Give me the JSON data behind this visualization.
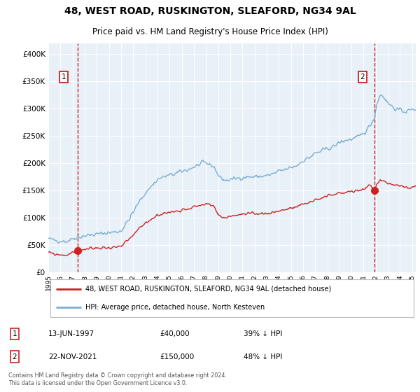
{
  "title": "48, WEST ROAD, RUSKINGTON, SLEAFORD, NG34 9AL",
  "subtitle": "Price paid vs. HM Land Registry's House Price Index (HPI)",
  "legend_line1": "48, WEST ROAD, RUSKINGTON, SLEAFORD, NG34 9AL (detached house)",
  "legend_line2": "HPI: Average price, detached house, North Kesteven",
  "annotation1": {
    "label": "1",
    "date_x": 1997.45,
    "price_y": 40000,
    "date_str": "13-JUN-1997",
    "price_str": "£40,000",
    "pct_str": "39% ↓ HPI"
  },
  "annotation2": {
    "label": "2",
    "date_x": 2021.9,
    "price_y": 150000,
    "date_str": "22-NOV-2021",
    "price_str": "£150,000",
    "pct_str": "48% ↓ HPI"
  },
  "hpi_color": "#7aaed4",
  "price_color": "#cc2222",
  "vline_color": "#cc2222",
  "bg_color": "#ffffff",
  "plot_bg": "#e8f0f8",
  "grid_color": "#ffffff",
  "ylim": [
    0,
    420000
  ],
  "xlim_start": 1995.0,
  "xlim_end": 2025.3,
  "footer": "Contains HM Land Registry data © Crown copyright and database right 2024.\nThis data is licensed under the Open Government Licence v3.0.",
  "hpi_key_years": [
    1995.0,
    1995.3,
    1995.6,
    1995.9,
    1996.2,
    1996.5,
    1996.8,
    1997.0,
    1997.3,
    1997.6,
    1997.9,
    1998.3,
    1998.7,
    1999.0,
    1999.5,
    2000.0,
    2000.5,
    2001.0,
    2001.5,
    2002.0,
    2002.5,
    2003.0,
    2003.5,
    2004.0,
    2004.5,
    2005.0,
    2005.5,
    2006.0,
    2006.5,
    2007.0,
    2007.3,
    2007.7,
    2008.0,
    2008.3,
    2008.7,
    2009.0,
    2009.3,
    2009.6,
    2010.0,
    2010.5,
    2011.0,
    2011.5,
    2012.0,
    2012.5,
    2013.0,
    2013.5,
    2014.0,
    2014.5,
    2015.0,
    2015.5,
    2016.0,
    2016.5,
    2017.0,
    2017.5,
    2018.0,
    2018.5,
    2019.0,
    2019.5,
    2020.0,
    2020.3,
    2020.6,
    2021.0,
    2021.3,
    2021.6,
    2021.9,
    2022.1,
    2022.3,
    2022.5,
    2022.8,
    2023.0,
    2023.3,
    2023.6,
    2024.0,
    2024.5,
    2025.0,
    2025.3
  ],
  "hpi_key_vals": [
    62000,
    60000,
    59000,
    58000,
    57500,
    57000,
    60000,
    62000,
    64000,
    65000,
    67000,
    68000,
    69000,
    70000,
    71500,
    73000,
    74000,
    76000,
    92000,
    110000,
    130000,
    145000,
    158000,
    170000,
    175000,
    178000,
    181000,
    185000,
    188000,
    193000,
    196000,
    200000,
    200000,
    198000,
    193000,
    178000,
    172000,
    168000,
    170000,
    172000,
    174000,
    175000,
    175000,
    176000,
    177000,
    180000,
    185000,
    188000,
    192000,
    196000,
    205000,
    210000,
    218000,
    222000,
    227000,
    230000,
    238000,
    242000,
    244000,
    246000,
    248000,
    255000,
    262000,
    272000,
    285000,
    310000,
    323000,
    325000,
    318000,
    310000,
    305000,
    300000,
    297000,
    295000,
    298000,
    300000
  ],
  "red_key_years": [
    1995.0,
    1995.3,
    1995.6,
    1995.9,
    1996.2,
    1996.5,
    1996.8,
    1997.0,
    1997.3,
    1997.45,
    1997.6,
    1997.9,
    1998.3,
    1998.7,
    1999.0,
    1999.5,
    2000.0,
    2000.5,
    2001.0,
    2001.5,
    2002.0,
    2002.5,
    2003.0,
    2003.5,
    2004.0,
    2004.5,
    2005.0,
    2005.5,
    2006.0,
    2006.5,
    2007.0,
    2007.5,
    2007.9,
    2008.3,
    2008.7,
    2009.0,
    2009.3,
    2009.6,
    2010.0,
    2010.5,
    2011.0,
    2011.5,
    2012.0,
    2012.5,
    2013.0,
    2013.5,
    2014.0,
    2014.5,
    2015.0,
    2015.5,
    2016.0,
    2016.5,
    2017.0,
    2017.5,
    2018.0,
    2018.5,
    2019.0,
    2019.5,
    2020.0,
    2020.5,
    2021.0,
    2021.5,
    2021.9,
    2022.1,
    2022.4,
    2022.7,
    2023.0,
    2023.5,
    2024.0,
    2024.5,
    2025.0,
    2025.3
  ],
  "red_key_vals": [
    36000,
    35000,
    33000,
    32500,
    32000,
    32000,
    34000,
    36000,
    38000,
    40000,
    41000,
    42000,
    43000,
    44000,
    44500,
    45000,
    45500,
    46000,
    47000,
    57000,
    68000,
    80000,
    90000,
    98000,
    105000,
    108000,
    110000,
    112000,
    115000,
    117000,
    120000,
    123000,
    125000,
    124000,
    120000,
    105000,
    102000,
    100000,
    103000,
    105000,
    106000,
    107000,
    107000,
    108000,
    108000,
    110000,
    113000,
    115000,
    117000,
    120000,
    125000,
    128000,
    133000,
    136000,
    140000,
    142000,
    145000,
    147000,
    148000,
    150000,
    153000,
    160000,
    150000,
    163000,
    170000,
    168000,
    163000,
    160000,
    158000,
    156000,
    155000,
    156000
  ]
}
